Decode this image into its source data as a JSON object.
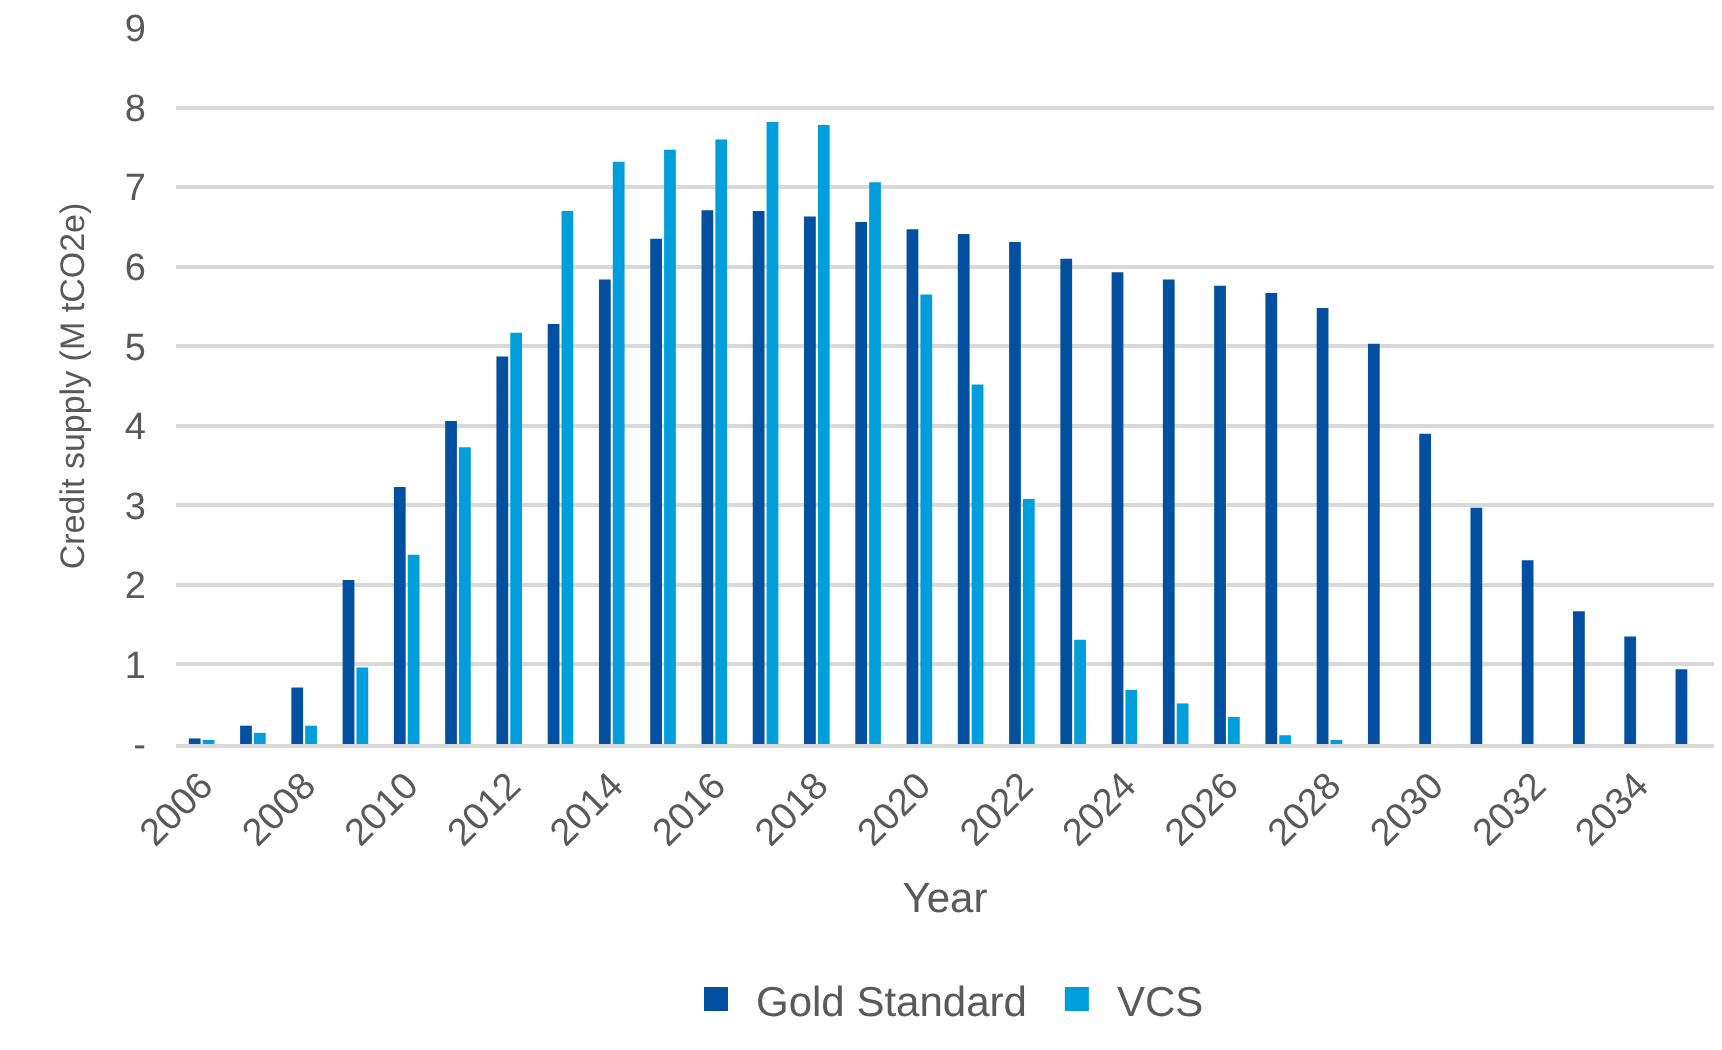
{
  "chart_data": {
    "type": "bar",
    "xlabel": "Year",
    "ylabel": "Credit supply (M tCO2e)",
    "categories": [
      "2006",
      null,
      "2008",
      null,
      "2010",
      null,
      "2012",
      null,
      "2014",
      null,
      "2016",
      null,
      "2018",
      null,
      "2020",
      null,
      "2022",
      null,
      "2024",
      null,
      "2026",
      null,
      "2028",
      null,
      "2030",
      null,
      "2032",
      null,
      "2034",
      null
    ],
    "series": [
      {
        "name": "Gold Standard",
        "color": "#0450a0",
        "values": [
          0.07,
          0.23,
          0.71,
          2.06,
          3.23,
          4.06,
          4.87,
          5.28,
          5.84,
          6.35,
          6.71,
          6.7,
          6.63,
          6.56,
          6.47,
          6.41,
          6.31,
          6.1,
          5.93,
          5.84,
          5.76,
          5.67,
          5.48,
          5.03,
          3.9,
          2.97,
          2.31,
          1.67,
          1.35,
          0.94
        ]
      },
      {
        "name": "VCS",
        "color": "#009fdb",
        "values": [
          0.05,
          0.14,
          0.23,
          0.96,
          2.38,
          3.73,
          5.17,
          6.7,
          7.32,
          7.47,
          7.6,
          7.82,
          7.78,
          7.06,
          5.65,
          4.52,
          3.08,
          1.31,
          0.68,
          0.51,
          0.34,
          0.11,
          0.05,
          null,
          null,
          null,
          null,
          null,
          null,
          null
        ]
      }
    ],
    "ylim": [
      0,
      9
    ],
    "yticks": [
      {
        "value": 0,
        "label": "-"
      },
      1,
      2,
      3,
      4,
      5,
      6,
      7,
      8,
      9
    ],
    "grid": "y",
    "legend": "bottom"
  }
}
